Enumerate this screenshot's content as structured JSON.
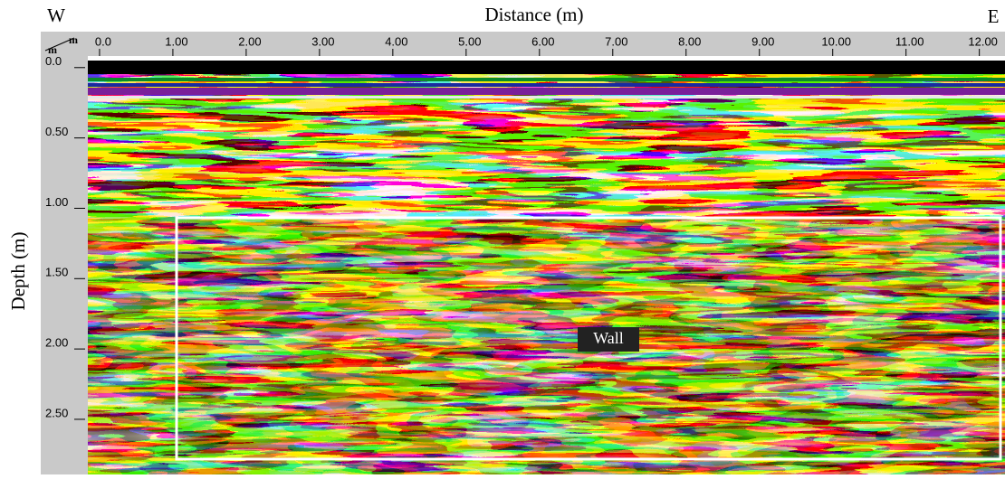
{
  "chart_data": {
    "type": "radargram",
    "title": "Distance (m)",
    "y_label": "Depth (m)",
    "west_label": "W",
    "east_label": "E",
    "corner_labels": [
      "m",
      "m"
    ],
    "annotation": "Wall",
    "xlim": [
      -0.16,
      12.35
    ],
    "ylim": [
      -0.05,
      2.86
    ],
    "y_direction": "down",
    "xticks": [
      {
        "value": 0,
        "label": "0.0"
      },
      {
        "value": 1,
        "label": "1.00"
      },
      {
        "value": 2,
        "label": "2.00"
      },
      {
        "value": 3,
        "label": "3.00"
      },
      {
        "value": 4,
        "label": "4.00"
      },
      {
        "value": 5,
        "label": "5.00"
      },
      {
        "value": 6,
        "label": "6.00"
      },
      {
        "value": 7,
        "label": "7.00"
      },
      {
        "value": 8,
        "label": "8.00"
      },
      {
        "value": 9,
        "label": "9.00"
      },
      {
        "value": 10,
        "label": "10.00"
      },
      {
        "value": 11,
        "label": "11.00"
      },
      {
        "value": 12,
        "label": "12.00"
      }
    ],
    "yticks": [
      {
        "value": 0,
        "label": "0.0"
      },
      {
        "value": 0.5,
        "label": "0.50"
      },
      {
        "value": 1,
        "label": "1.00"
      },
      {
        "value": 1.5,
        "label": "1.50"
      },
      {
        "value": 2,
        "label": "2.00"
      },
      {
        "value": 2.5,
        "label": "2.50"
      }
    ]
  }
}
